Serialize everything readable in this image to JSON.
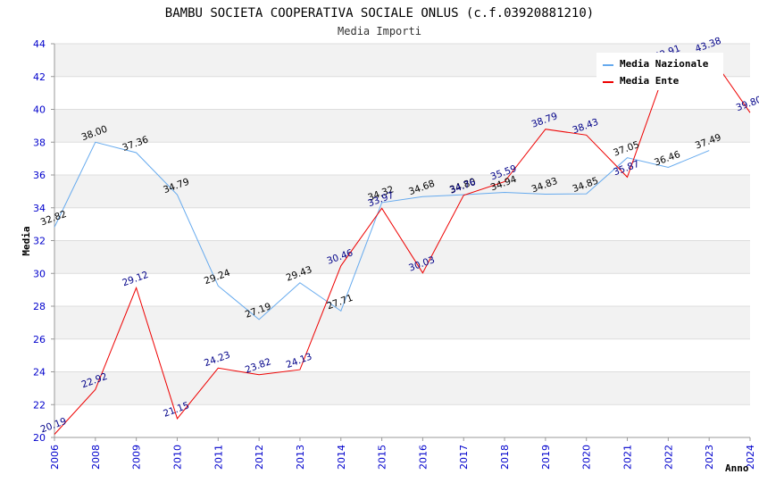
{
  "chart_data": {
    "type": "line",
    "title": "BAMBU SOCIETA COOPERATIVA SOCIALE ONLUS (c.f.03920881210)",
    "subtitle": "Media Importi",
    "xlabel": "Anno",
    "ylabel": "Media",
    "ylim": [
      20,
      44
    ],
    "yticks": [
      "20",
      "22",
      "24",
      "26",
      "28",
      "30",
      "32",
      "34",
      "36",
      "38",
      "40",
      "42",
      "44"
    ],
    "x": [
      "2006",
      "2008",
      "2009",
      "2010",
      "2011",
      "2012",
      "2013",
      "2014",
      "2015",
      "2016",
      "2017",
      "2018",
      "2019",
      "2020",
      "2021",
      "2022",
      "2023",
      "2024"
    ],
    "grid": "horizontal bands",
    "legend_position": "top-right",
    "series": [
      {
        "name": "Media Nazionale",
        "color": "#66aaee",
        "label_color": "#000000",
        "values": [
          32.82,
          38.0,
          37.36,
          34.79,
          29.24,
          27.19,
          29.43,
          27.71,
          34.32,
          34.68,
          34.8,
          34.94,
          34.83,
          34.85,
          37.05,
          36.46,
          37.49,
          null
        ],
        "labels": [
          "32.82",
          "38.00",
          "37.36",
          "34.79",
          "29.24",
          "27.19",
          "29.43",
          "27.71",
          "34.32",
          "34.68",
          "34.80",
          "34.94",
          "34.83",
          "34.85",
          "37.05",
          "36.46",
          "37.49",
          ""
        ]
      },
      {
        "name": "Media Ente",
        "color": "#ee0000",
        "label_color": "#000088",
        "values": [
          20.19,
          22.92,
          29.12,
          21.15,
          24.23,
          23.82,
          24.13,
          30.46,
          33.97,
          30.03,
          34.76,
          35.59,
          38.79,
          38.43,
          35.87,
          42.91,
          43.38,
          39.8
        ],
        "labels": [
          "20.19",
          "22.92",
          "29.12",
          "21.15",
          "24.23",
          "23.82",
          "24.13",
          "30.46",
          "33.97",
          "30.03",
          "34.76",
          "35.59",
          "38.79",
          "38.43",
          "35.87",
          "42.91",
          "43.38",
          "39.80"
        ]
      }
    ]
  }
}
